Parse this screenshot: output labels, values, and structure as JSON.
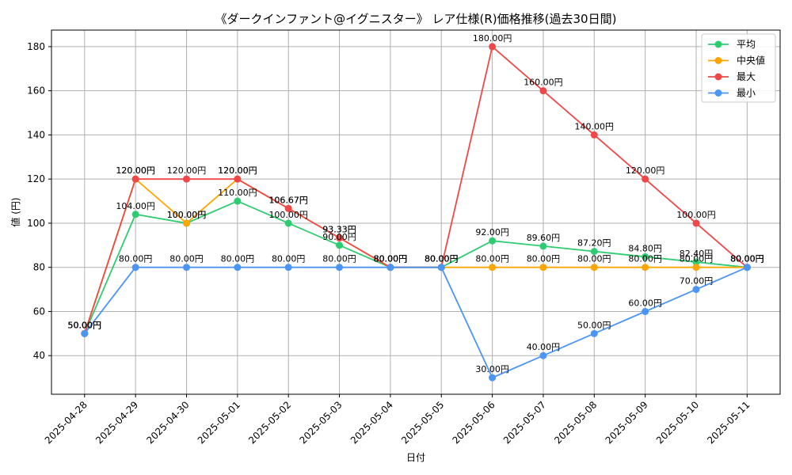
{
  "chart_data": {
    "type": "line",
    "title": "《ダークインファント@イグニスター》 レア仕様(R)価格推移(過去30日間)",
    "xlabel": "日付",
    "ylabel": "値 (円)",
    "ylim": [
      22.5,
      187.5
    ],
    "yticks": [
      40,
      60,
      80,
      100,
      120,
      140,
      160,
      180
    ],
    "grid": true,
    "legend_position": "top-right",
    "categories": [
      "2025-04-28",
      "2025-04-29",
      "2025-04-30",
      "2025-05-01",
      "2025-05-02",
      "2025-05-03",
      "2025-05-04",
      "2025-05-05",
      "2025-05-06",
      "2025-05-07",
      "2025-05-08",
      "2025-05-09",
      "2025-05-10",
      "2025-05-11"
    ],
    "series": [
      {
        "name": "平均",
        "color": "#2ecc71",
        "values": [
          50,
          104,
          100,
          110,
          100,
          90,
          80,
          80,
          92,
          89.6,
          87.2,
          84.8,
          82.4,
          80
        ],
        "labels": [
          "50.00円",
          "104.00円",
          "100.00円",
          "110.00円",
          "100.00円",
          "90.00円",
          "80.00円",
          "80.00円",
          "92.00円",
          "89.60円",
          "87.20円",
          "84.80円",
          "82.40円",
          "80.00円"
        ]
      },
      {
        "name": "中央値",
        "color": "#ffa500",
        "values": [
          50,
          120,
          100,
          120,
          106.67,
          93.33,
          80,
          80,
          80,
          80,
          80,
          80,
          80,
          80
        ],
        "labels": [
          "50.00円",
          "120.00円",
          "100.00円",
          "120.00円",
          "106.67円",
          "93.33円",
          "80.00円",
          "80.00円",
          "80.00円",
          "80.00円",
          "80.00円",
          "80.00円",
          "80.00円",
          "80.00円"
        ]
      },
      {
        "name": "最大",
        "color": "#f04848",
        "values": [
          50,
          120,
          120,
          120,
          106.67,
          93.33,
          80,
          80,
          180,
          160,
          140,
          120,
          100,
          80
        ],
        "labels": [
          "50.00円",
          "120.00円",
          "120.00円",
          "120.00円",
          "106.67円",
          "93.33円",
          "80.00円",
          "80.00円",
          "180.00円",
          "160.00円",
          "140.00円",
          "120.00円",
          "100.00円",
          "80.00円"
        ]
      },
      {
        "name": "最小",
        "color": "#4a95f5",
        "values": [
          50,
          80,
          80,
          80,
          80,
          80,
          80,
          80,
          30,
          40,
          50,
          60,
          70,
          80
        ],
        "labels": [
          "50.00円",
          "80.00円",
          "80.00円",
          "80.00円",
          "80.00円",
          "80.00円",
          "80.00円",
          "80.00円",
          "30.00円",
          "40.00円",
          "50.00円",
          "60.00円",
          "70.00円",
          "80.00円"
        ]
      }
    ]
  }
}
